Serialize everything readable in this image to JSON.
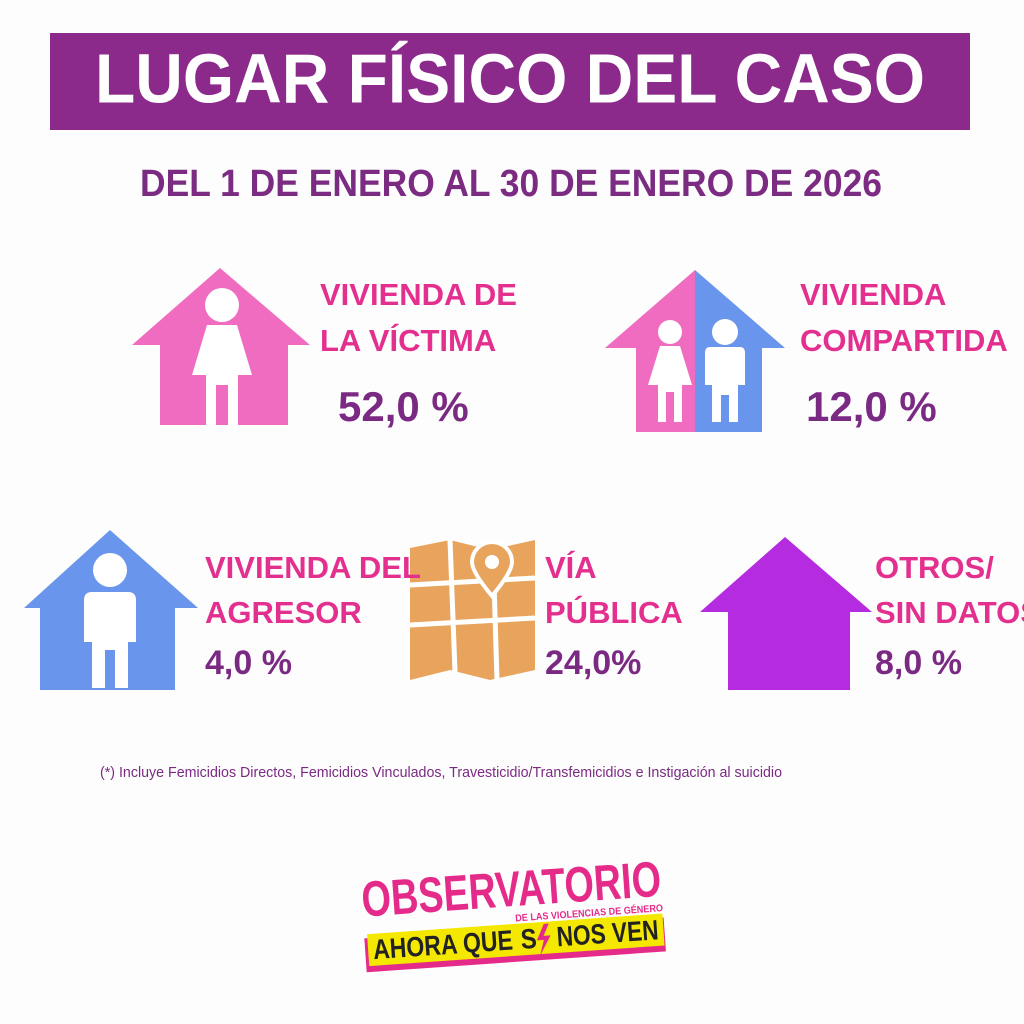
{
  "header": {
    "title": "LUGAR FÍSICO DEL CASO",
    "subtitle": "DEL 1 DE ENERO AL 30 DE ENERO DE 2026"
  },
  "items": [
    {
      "label": [
        "VIVIENDA DE",
        "LA VÍCTIMA"
      ],
      "value": "52,0 %"
    },
    {
      "label": [
        "VIVIENDA",
        "COMPARTIDA"
      ],
      "value": "12,0 %"
    },
    {
      "label": [
        "VIVIENDA DEL",
        "AGRESOR"
      ],
      "value": "4,0 %"
    },
    {
      "label": [
        "VÍA",
        "PÚBLICA"
      ],
      "value": "24,0%"
    },
    {
      "label": [
        "OTROS/",
        "SIN DATOS"
      ],
      "value": "8,0 %"
    }
  ],
  "footnote": "(*) Incluye Femicidios Directos, Femicidios Vinculados,  Travesticidio/Transfemicidios e Instigación al suicidio",
  "logo": {
    "name": "OBSERVATORIO",
    "tagline": "DE LAS VIOLENCIAS DE GÉNERO",
    "slogan_start": "AHORA QUE",
    "slogan_s": "S",
    "slogan_end": "NOS VEN"
  }
}
